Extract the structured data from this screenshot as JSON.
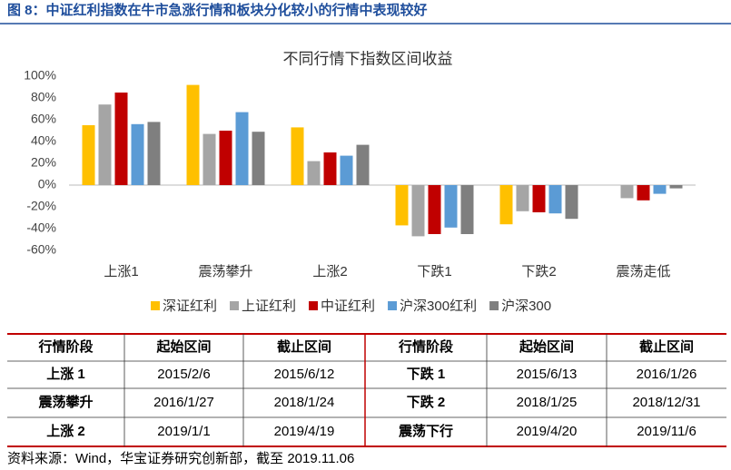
{
  "header": {
    "title": "图 8：中证红利指数在牛市急涨行情和板块分化较小的行情中表现较好"
  },
  "chart_data": {
    "type": "bar",
    "title": "不同行情下指数区间收益",
    "categories": [
      "上涨1",
      "震荡攀升",
      "上涨2",
      "下跌1",
      "下跌2",
      "震荡走低"
    ],
    "series": [
      {
        "name": "深证红利",
        "color": "#ffc000",
        "values": [
          55,
          92,
          53,
          -37,
          -36,
          0
        ]
      },
      {
        "name": "上证红利",
        "color": "#a5a5a5",
        "values": [
          74,
          47,
          22,
          -47,
          -24,
          -12
        ]
      },
      {
        "name": "中证红利",
        "color": "#c00000",
        "values": [
          85,
          50,
          30,
          -45,
          -25,
          -14
        ]
      },
      {
        "name": "沪深300红利",
        "color": "#5b9bd5",
        "values": [
          56,
          67,
          27,
          -39,
          -26,
          -8
        ]
      },
      {
        "name": "沪深300",
        "color": "#7f7f7f",
        "values": [
          58,
          49,
          37,
          -45,
          -31,
          -3
        ]
      }
    ],
    "ylim": [
      -60,
      100
    ],
    "yticks": [
      {
        "value": -60,
        "label": "-60%"
      },
      {
        "value": -40,
        "label": "-40%"
      },
      {
        "value": -20,
        "label": "-20%"
      },
      {
        "value": 0,
        "label": "0%"
      },
      {
        "value": 20,
        "label": "20%"
      },
      {
        "value": 40,
        "label": "40%"
      },
      {
        "value": 60,
        "label": "60%"
      },
      {
        "value": 80,
        "label": "80%"
      },
      {
        "value": 100,
        "label": "100%"
      }
    ],
    "grid": false
  },
  "table": {
    "headers": [
      "行情阶段",
      "起始区间",
      "截止区间",
      "行情阶段",
      "起始区间",
      "截止区间"
    ],
    "rows": [
      [
        "上涨 1",
        "2015/2/6",
        "2015/6/12",
        "下跌 1",
        "2015/6/13",
        "2016/1/26"
      ],
      [
        "震荡攀升",
        "2016/1/27",
        "2018/1/24",
        "下跌 2",
        "2018/1/25",
        "2018/12/31"
      ],
      [
        "上涨 2",
        "2019/1/1",
        "2019/4/19",
        "震荡下行",
        "2019/4/20",
        "2019/11/6"
      ]
    ]
  },
  "footer": {
    "source": "资料来源：Wind，华宝证券研究创新部，截至 2019.11.06"
  }
}
